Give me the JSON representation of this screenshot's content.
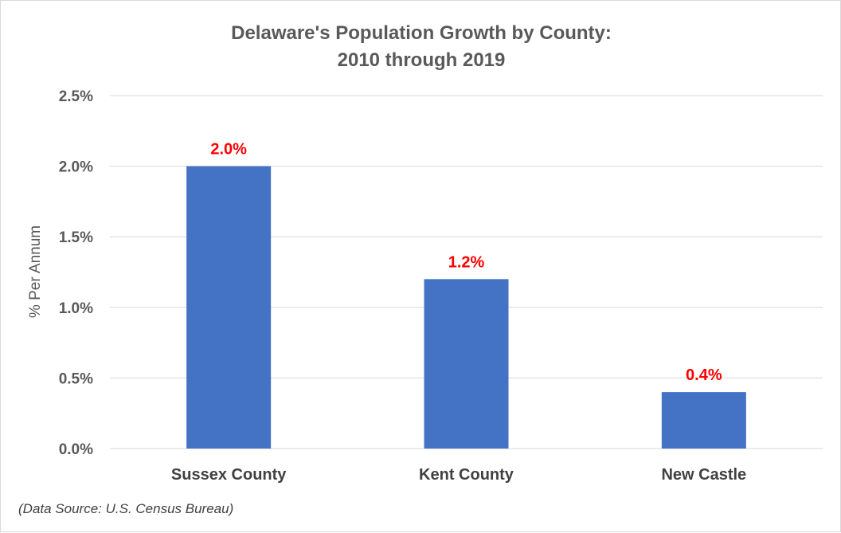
{
  "chart_data": {
    "type": "bar",
    "title_lines": [
      "Delaware's Population Growth by County:",
      "2010 through 2019"
    ],
    "ylabel": "% Per Annum",
    "xlabel": "",
    "categories": [
      "Sussex County",
      "Kent County",
      "New Castle"
    ],
    "values": [
      2.0,
      1.2,
      0.4
    ],
    "data_labels": [
      "2.0%",
      "1.2%",
      "0.4%"
    ],
    "ylim": [
      0,
      2.5
    ],
    "yticks": [
      {
        "value": 0.0,
        "label": "0.0%"
      },
      {
        "value": 0.5,
        "label": "0.5%"
      },
      {
        "value": 1.0,
        "label": "1.0%"
      },
      {
        "value": 1.5,
        "label": "1.5%"
      },
      {
        "value": 2.0,
        "label": "2.0%"
      },
      {
        "value": 2.5,
        "label": "2.5%"
      }
    ],
    "grid": true,
    "legend": "none",
    "bar_color": "#4472c4",
    "data_label_color": "#ff0000",
    "source_note": "(Data Source: U.S. Census Bureau)"
  }
}
